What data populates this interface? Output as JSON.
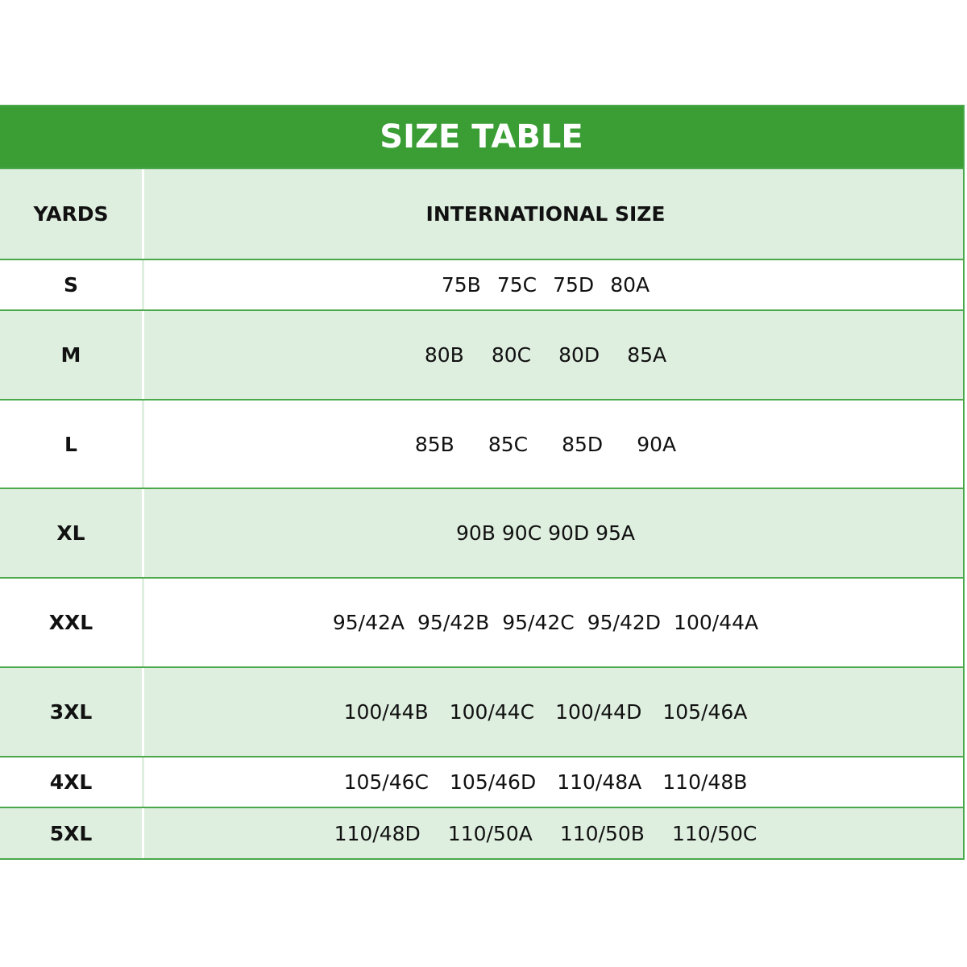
{
  "title": "SIZE TABLE",
  "header": {
    "col1": "YARDS",
    "col2": "INTERNATIONAL SIZE"
  },
  "colors": {
    "title_bg": "#3a9e35",
    "row_alt_bg": "#deeedf",
    "border": "#4aa84a"
  },
  "rows": [
    {
      "yard": "S",
      "sizes": [
        "75B",
        "75C",
        "75D",
        "80A"
      ]
    },
    {
      "yard": "M",
      "sizes": [
        "80B",
        "80C",
        "80D",
        "85A"
      ]
    },
    {
      "yard": "L",
      "sizes": [
        "85B",
        "85C",
        "85D",
        "90A"
      ]
    },
    {
      "yard": "XL",
      "sizes": [
        "90B 90C 90D 95A"
      ]
    },
    {
      "yard": "XXL",
      "sizes": [
        "95/42A",
        "95/42B",
        "95/42C",
        "95/42D",
        "100/44A"
      ]
    },
    {
      "yard": "3XL",
      "sizes": [
        "100/44B",
        "100/44C",
        "100/44D",
        "105/46A"
      ]
    },
    {
      "yard": "4XL",
      "sizes": [
        "105/46C",
        "105/46D",
        "110/48A",
        "110/48B"
      ]
    },
    {
      "yard": "5XL",
      "sizes": [
        "110/48D",
        "110/50A",
        "110/50B",
        "110/50C"
      ]
    }
  ]
}
